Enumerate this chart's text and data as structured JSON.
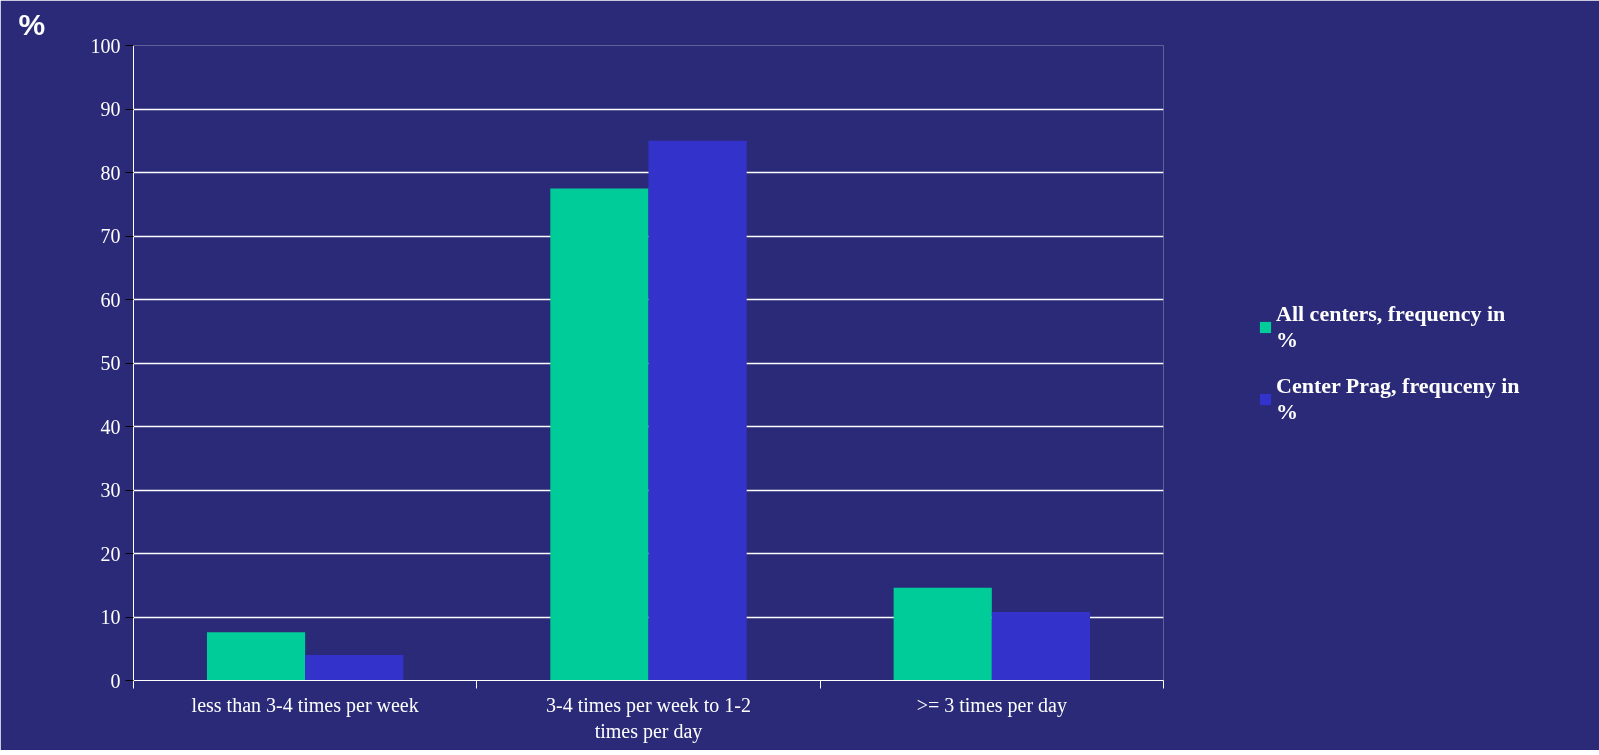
{
  "chart_data": {
    "type": "bar",
    "ylabel": "%",
    "categories": [
      "less than 3-4 times per week",
      "3-4 times per week to 1-2 times per day",
      ">= 3 times per day"
    ],
    "series": [
      {
        "name": "All centers, frequency in %",
        "color": "#00cc99",
        "values": [
          7.6,
          77.5,
          14.6
        ]
      },
      {
        "name": "Center Prag, frequceny in %",
        "color": "#3333cc",
        "values": [
          4.0,
          85.0,
          10.8
        ]
      }
    ],
    "ylim": [
      0,
      100
    ],
    "yticks": [
      0,
      10,
      20,
      30,
      40,
      50,
      60,
      70,
      80,
      90,
      100
    ],
    "grid": "y",
    "legend": "right"
  }
}
